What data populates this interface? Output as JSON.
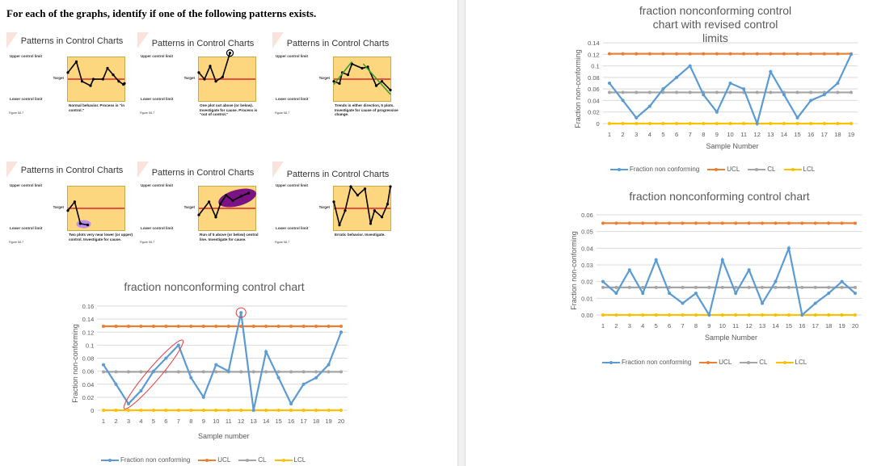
{
  "heading": "For each of the graphs, identify if one of the following patterns exists.",
  "slides": [
    {
      "title": "Patterns in Control Charts",
      "ucl": "Upper control limit",
      "target": "Target",
      "lcl": "Lower control limit",
      "desc": "Normal behavior. Process is \"in control.\"",
      "fig": "Figure S6.7"
    },
    {
      "title": "Patterns in Control Charts",
      "ucl": "Upper control limit",
      "target": "Target",
      "lcl": "Lower control limit",
      "desc": "One plot out above (or below). Investigate for cause. Process is \"out of control.\"",
      "fig": "Figure S6.7"
    },
    {
      "title": "Patterns in Control Charts",
      "ucl": "Upper control limit",
      "target": "Target",
      "lcl": "Lower control limit",
      "desc": "Trends in either direction, 5 plots. Investigate for cause of progressive change.",
      "fig": "Figure S6.7"
    },
    {
      "title": "Patterns in Control Charts",
      "ucl": "Upper control limit",
      "target": "Target",
      "lcl": "Lower control limit",
      "desc": "Two plots very near lower (or upper) control. Investigate for cause.",
      "fig": "Figure S6.7"
    },
    {
      "title": "Patterns in Control Charts",
      "ucl": "Upper control limit",
      "target": "Target",
      "lcl": "Lower control limit",
      "desc": "Run of 5 above (or below) central line. Investigate for cause.",
      "fig": "Figure S6.7"
    },
    {
      "title": "Patterns in Control Charts",
      "ucl": "Upper control limit",
      "target": "Target",
      "lcl": "Lower control limit",
      "desc": "Erratic behavior. Investigate.",
      "fig": "Figure S6.7"
    }
  ],
  "chart_data": [
    {
      "type": "line",
      "title": "fraction nonconforming control chart",
      "xlabel": "Sample number",
      "ylabel": "Fraction non-conforming",
      "categories": [
        1,
        2,
        3,
        4,
        5,
        6,
        7,
        8,
        9,
        10,
        11,
        12,
        13,
        14,
        15,
        16,
        17,
        18,
        19,
        20
      ],
      "ylim": [
        0,
        0.16
      ],
      "yticks": [
        "0",
        "0.02",
        "0.04",
        "0.06",
        "0.08",
        "0.1",
        "0.12",
        "0.14",
        "0.16"
      ],
      "ytick_values": [
        0,
        0.02,
        0.04,
        0.06,
        0.08,
        0.1,
        0.12,
        0.14,
        0.16
      ],
      "grid": true,
      "legend": "bottom",
      "series": [
        {
          "name": "Fraction non conforming",
          "color": "#5b9bd5",
          "values": [
            0.07,
            0.04,
            0.01,
            0.03,
            0.06,
            0.08,
            0.1,
            0.05,
            0.02,
            0.07,
            0.06,
            0.15,
            0,
            0.09,
            0.05,
            0.01,
            0.04,
            0.05,
            0.07,
            0.12
          ]
        },
        {
          "name": "UCL",
          "color": "#ed7d31",
          "values": [
            0.129,
            0.129,
            0.129,
            0.129,
            0.129,
            0.129,
            0.129,
            0.129,
            0.129,
            0.129,
            0.129,
            0.129,
            0.129,
            0.129,
            0.129,
            0.129,
            0.129,
            0.129,
            0.129,
            0.129
          ]
        },
        {
          "name": "CL",
          "color": "#a5a5a5",
          "values": [
            0.059,
            0.059,
            0.059,
            0.059,
            0.059,
            0.059,
            0.059,
            0.059,
            0.059,
            0.059,
            0.059,
            0.059,
            0.059,
            0.059,
            0.059,
            0.059,
            0.059,
            0.059,
            0.059,
            0.059
          ]
        },
        {
          "name": "LCL",
          "color": "#ffc000",
          "values": [
            0,
            0,
            0,
            0,
            0,
            0,
            0,
            0,
            0,
            0,
            0,
            0,
            0,
            0,
            0,
            0,
            0,
            0,
            0,
            0
          ]
        }
      ],
      "annotations": {
        "color": "#e8383d",
        "trend_ellipse_samples": [
          3,
          7
        ],
        "circled_sample": 12
      }
    },
    {
      "type": "line",
      "title": "fraction nonconforming control chart with revised control limits",
      "xlabel": "Sample Number",
      "ylabel": "Fraction non-conforming",
      "categories": [
        1,
        2,
        3,
        4,
        5,
        6,
        7,
        8,
        9,
        10,
        11,
        12,
        13,
        14,
        15,
        16,
        17,
        18,
        19
      ],
      "ylim": [
        0,
        0.14
      ],
      "yticks": [
        "0",
        "0.02",
        "0.04",
        "0.06",
        "0.08",
        "0.1",
        "0.12",
        "0.14"
      ],
      "ytick_values": [
        0,
        0.02,
        0.04,
        0.06,
        0.08,
        0.1,
        0.12,
        0.14
      ],
      "grid": true,
      "legend": "bottom",
      "series": [
        {
          "name": "Fraction non conforming",
          "color": "#5b9bd5",
          "values": [
            0.07,
            0.04,
            0.01,
            0.03,
            0.06,
            0.08,
            0.1,
            0.05,
            0.02,
            0.07,
            0.06,
            0,
            0.09,
            0.05,
            0.01,
            0.04,
            0.05,
            0.07,
            0.12
          ]
        },
        {
          "name": "UCL",
          "color": "#ed7d31",
          "values": [
            0.121,
            0.121,
            0.121,
            0.121,
            0.121,
            0.121,
            0.121,
            0.121,
            0.121,
            0.121,
            0.121,
            0.121,
            0.121,
            0.121,
            0.121,
            0.121,
            0.121,
            0.121,
            0.121
          ]
        },
        {
          "name": "CL",
          "color": "#a5a5a5",
          "values": [
            0.054,
            0.054,
            0.054,
            0.054,
            0.054,
            0.054,
            0.054,
            0.054,
            0.054,
            0.054,
            0.054,
            0.054,
            0.054,
            0.054,
            0.054,
            0.054,
            0.054,
            0.054,
            0.054
          ]
        },
        {
          "name": "LCL",
          "color": "#ffc000",
          "values": [
            0,
            0,
            0,
            0,
            0,
            0,
            0,
            0,
            0,
            0,
            0,
            0,
            0,
            0,
            0,
            0,
            0,
            0,
            0
          ]
        }
      ]
    },
    {
      "type": "line",
      "title": "fraction nonconforming control chart",
      "xlabel": "Sample Number",
      "ylabel": "Fraction non-conforming",
      "categories": [
        1,
        2,
        3,
        4,
        5,
        6,
        7,
        8,
        9,
        10,
        11,
        12,
        13,
        14,
        15,
        16,
        17,
        18,
        19,
        20
      ],
      "ylim": [
        0,
        0.06
      ],
      "yticks": [
        "0.00",
        "0.01",
        "0.02",
        "0.03",
        "0.04",
        "0.05",
        "0.06"
      ],
      "ytick_values": [
        0,
        0.01,
        0.02,
        0.03,
        0.04,
        0.05,
        0.06
      ],
      "grid": true,
      "legend": "bottom",
      "series": [
        {
          "name": "Fraction non conforming",
          "color": "#5b9bd5",
          "values": [
            0.02,
            0.013,
            0.027,
            0.013,
            0.033,
            0.013,
            0.007,
            0.013,
            0,
            0.033,
            0.013,
            0.027,
            0.007,
            0.02,
            0.04,
            0,
            0.007,
            0.013,
            0.02,
            0.013
          ]
        },
        {
          "name": "UCL",
          "color": "#ed7d31",
          "values": [
            0.055,
            0.055,
            0.055,
            0.055,
            0.055,
            0.055,
            0.055,
            0.055,
            0.055,
            0.055,
            0.055,
            0.055,
            0.055,
            0.055,
            0.055,
            0.055,
            0.055,
            0.055,
            0.055,
            0.055
          ]
        },
        {
          "name": "CL",
          "color": "#a5a5a5",
          "values": [
            0.0165,
            0.0165,
            0.0165,
            0.0165,
            0.0165,
            0.0165,
            0.0165,
            0.0165,
            0.0165,
            0.0165,
            0.0165,
            0.0165,
            0.0165,
            0.0165,
            0.0165,
            0.0165,
            0.0165,
            0.0165,
            0.0165,
            0.0165
          ]
        },
        {
          "name": "LCL",
          "color": "#ffc000",
          "values": [
            0,
            0,
            0,
            0,
            0,
            0,
            0,
            0,
            0,
            0,
            0,
            0,
            0,
            0,
            0,
            0,
            0,
            0,
            0,
            0
          ]
        }
      ]
    }
  ]
}
